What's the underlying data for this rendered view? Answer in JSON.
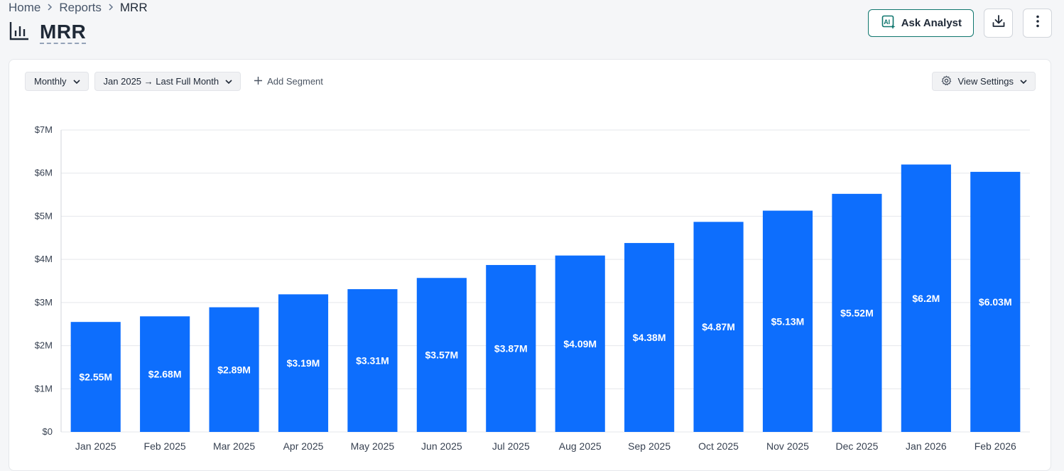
{
  "breadcrumb": {
    "items": [
      "Home",
      "Reports"
    ],
    "current": "MRR"
  },
  "page": {
    "title": "MRR",
    "title_icon": "bar-chart-icon"
  },
  "actions": {
    "ask_label": "Ask Analyst",
    "ask_icon": "ai-sparkle-icon",
    "download_icon": "download-icon",
    "more_icon": "more-vertical-icon"
  },
  "toolbar": {
    "interval": "Monthly",
    "range": "Jan 2025 → Last Full Month",
    "add_segment": "Add Segment",
    "view_settings": "View Settings"
  },
  "colors": {
    "bar": "#0d6efd",
    "grid": "#e5e7eb",
    "axis_text": "#374151",
    "accent": "#0f766e"
  },
  "chart_data": {
    "type": "bar",
    "categories": [
      "Jan 2025",
      "Feb 2025",
      "Mar 2025",
      "Apr 2025",
      "May 2025",
      "Jun 2025",
      "Jul 2025",
      "Aug 2025",
      "Sep 2025",
      "Oct 2025",
      "Nov 2025",
      "Dec 2025",
      "Jan 2026",
      "Feb 2026"
    ],
    "values": [
      2.55,
      2.68,
      2.89,
      3.19,
      3.31,
      3.57,
      3.87,
      4.09,
      4.38,
      4.87,
      5.13,
      5.52,
      6.2,
      6.03
    ],
    "data_labels": [
      "$2.55M",
      "$2.68M",
      "$2.89M",
      "$3.19M",
      "$3.31M",
      "$3.57M",
      "$3.87M",
      "$4.09M",
      "$4.38M",
      "$4.87M",
      "$5.13M",
      "$5.52M",
      "$6.2M",
      "$6.03M"
    ],
    "unit": "millions USD",
    "ylim": [
      0,
      7
    ],
    "yticks": [
      0,
      1,
      2,
      3,
      4,
      5,
      6,
      7
    ],
    "ytick_labels": [
      "$0",
      "$1M",
      "$2M",
      "$3M",
      "$4M",
      "$5M",
      "$6M",
      "$7M"
    ],
    "grid": true,
    "title": "",
    "xlabel": "",
    "ylabel": ""
  }
}
